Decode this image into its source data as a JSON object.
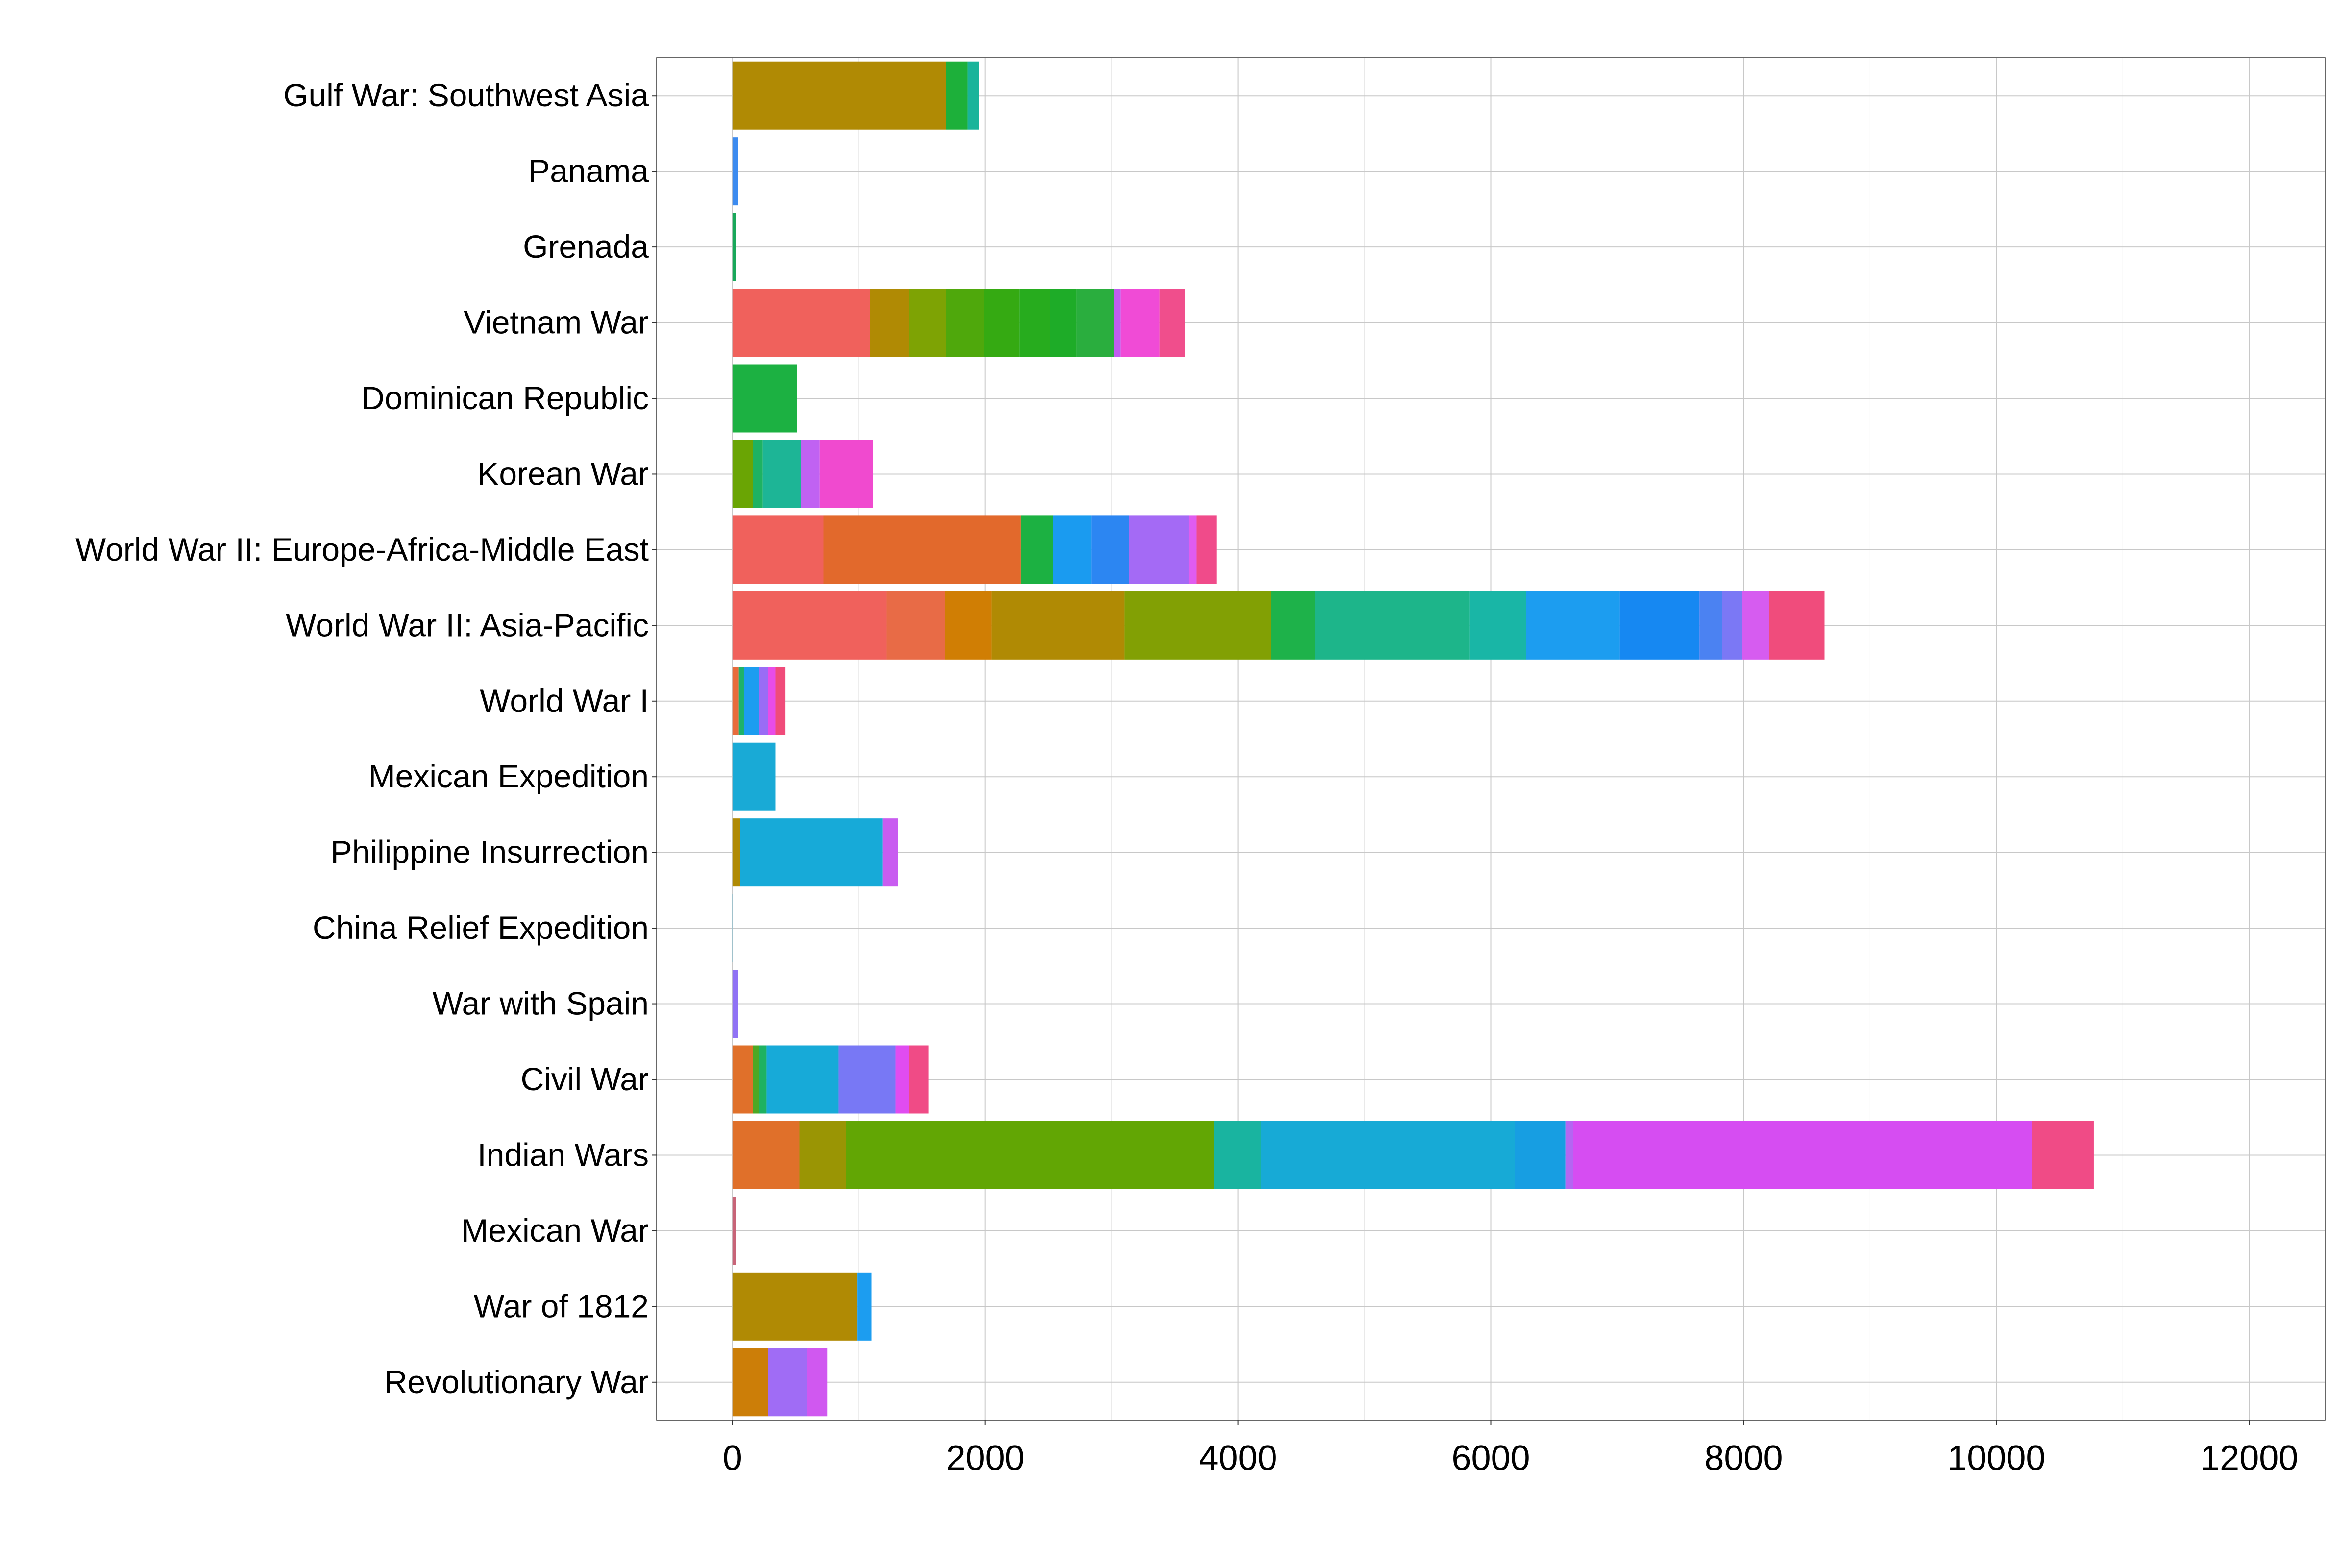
{
  "chart_data": {
    "type": "bar",
    "orientation": "horizontal",
    "stacked": true,
    "title": "",
    "xlabel": "",
    "ylabel": "",
    "xlim": [
      -600,
      12600
    ],
    "x_ticks": [
      0,
      2000,
      4000,
      6000,
      8000,
      10000,
      12000
    ],
    "grid": true,
    "legend": "none",
    "categories": [
      "Gulf War: Southwest Asia",
      "Panama",
      "Grenada",
      "Vietnam War",
      "Dominican Republic",
      "Korean War",
      "World War II: Europe-Africa-Middle East",
      "World War II: Asia-Pacific",
      "World War I",
      "Mexican Expedition",
      "Philippine Insurrection",
      "China Relief Expedition",
      "War with Spain",
      "Civil War",
      "Indian Wars",
      "Mexican War",
      "War of 1812",
      "Revolutionary War"
    ],
    "bars": [
      {
        "category": "Gulf War: Southwest Asia",
        "segments": [
          {
            "value": 1690,
            "color": "#B08A04"
          },
          {
            "value": 170,
            "color": "#1DB03A"
          },
          {
            "value": 90,
            "color": "#19B49A"
          }
        ]
      },
      {
        "category": "Panama",
        "segments": [
          {
            "value": 45,
            "color": "#3C8BF0"
          }
        ]
      },
      {
        "category": "Grenada",
        "segments": [
          {
            "value": 30,
            "color": "#19A85A"
          }
        ]
      },
      {
        "category": "Vietnam War",
        "segments": [
          {
            "value": 1090,
            "color": "#F0615C"
          },
          {
            "value": 310,
            "color": "#B08A04"
          },
          {
            "value": 290,
            "color": "#7EA304"
          },
          {
            "value": 300,
            "color": "#4FA80C"
          },
          {
            "value": 280,
            "color": "#35AA12"
          },
          {
            "value": 240,
            "color": "#27AC1E"
          },
          {
            "value": 210,
            "color": "#1EAC28"
          },
          {
            "value": 300,
            "color": "#2AAE3E"
          },
          {
            "value": 50,
            "color": "#C05CF0"
          },
          {
            "value": 310,
            "color": "#F04BD6"
          },
          {
            "value": 200,
            "color": "#F04E8C"
          }
        ]
      },
      {
        "category": "Dominican Republic",
        "segments": [
          {
            "value": 510,
            "color": "#1CB142"
          }
        ]
      },
      {
        "category": "Korean War",
        "segments": [
          {
            "value": 160,
            "color": "#6AA504"
          },
          {
            "value": 80,
            "color": "#1EB262"
          },
          {
            "value": 300,
            "color": "#1DB596"
          },
          {
            "value": 150,
            "color": "#C062F2"
          },
          {
            "value": 420,
            "color": "#F04ACF"
          }
        ]
      },
      {
        "category": "World War II: Europe-Africa-Middle East",
        "segments": [
          {
            "value": 720,
            "color": "#F0615C"
          },
          {
            "value": 1560,
            "color": "#E2692C"
          },
          {
            "value": 260,
            "color": "#1CB142"
          },
          {
            "value": 300,
            "color": "#1A9BF0"
          },
          {
            "value": 300,
            "color": "#2C86F2"
          },
          {
            "value": 470,
            "color": "#A46AF5"
          },
          {
            "value": 60,
            "color": "#E05CF0"
          },
          {
            "value": 160,
            "color": "#F04B8A"
          }
        ]
      },
      {
        "category": "World War II: Asia-Pacific",
        "segments": [
          {
            "value": 1220,
            "color": "#F0615C"
          },
          {
            "value": 460,
            "color": "#E86B46"
          },
          {
            "value": 370,
            "color": "#D07E04"
          },
          {
            "value": 1050,
            "color": "#B08A04"
          },
          {
            "value": 1160,
            "color": "#82A004"
          },
          {
            "value": 350,
            "color": "#1EB24A"
          },
          {
            "value": 1220,
            "color": "#1DB58A"
          },
          {
            "value": 450,
            "color": "#19B6A6"
          },
          {
            "value": 740,
            "color": "#1C9DF0"
          },
          {
            "value": 630,
            "color": "#1688F2"
          },
          {
            "value": 180,
            "color": "#4B82F2"
          },
          {
            "value": 160,
            "color": "#7B78F5"
          },
          {
            "value": 210,
            "color": "#D65CF0"
          },
          {
            "value": 440,
            "color": "#F04C7C"
          }
        ]
      },
      {
        "category": "World War I",
        "segments": [
          {
            "value": 50,
            "color": "#E86B3C"
          },
          {
            "value": 40,
            "color": "#1EB26A"
          },
          {
            "value": 120,
            "color": "#1C9DF0"
          },
          {
            "value": 70,
            "color": "#9A6CF5"
          },
          {
            "value": 60,
            "color": "#E84CE8"
          },
          {
            "value": 80,
            "color": "#F04B7A"
          }
        ]
      },
      {
        "category": "Mexican Expedition",
        "segments": [
          {
            "value": 340,
            "color": "#19AAD6"
          }
        ]
      },
      {
        "category": "Philippine Insurrection",
        "segments": [
          {
            "value": 60,
            "color": "#B08A04"
          },
          {
            "value": 1130,
            "color": "#17AAD8"
          },
          {
            "value": 120,
            "color": "#C85CF0"
          }
        ]
      },
      {
        "category": "China Relief Expedition",
        "segments": [
          {
            "value": 3,
            "color": "#19AAD6"
          }
        ]
      },
      {
        "category": "War with Spain",
        "segments": [
          {
            "value": 45,
            "color": "#9072F5"
          }
        ]
      },
      {
        "category": "Civil War",
        "segments": [
          {
            "value": 160,
            "color": "#E0702A"
          },
          {
            "value": 50,
            "color": "#4CA824"
          },
          {
            "value": 60,
            "color": "#1EB262"
          },
          {
            "value": 570,
            "color": "#17AAD8"
          },
          {
            "value": 450,
            "color": "#7878F5"
          },
          {
            "value": 110,
            "color": "#E04CF0"
          },
          {
            "value": 150,
            "color": "#F04B86"
          }
        ]
      },
      {
        "category": "Indian Wars",
        "segments": [
          {
            "value": 530,
            "color": "#E0702A"
          },
          {
            "value": 370,
            "color": "#9A9504"
          },
          {
            "value": 2910,
            "color": "#62A604"
          },
          {
            "value": 370,
            "color": "#19B4A0"
          },
          {
            "value": 2010,
            "color": "#17AAD6"
          },
          {
            "value": 400,
            "color": "#179EE2"
          },
          {
            "value": 60,
            "color": "#B466F2"
          },
          {
            "value": 3630,
            "color": "#D64DF2"
          },
          {
            "value": 490,
            "color": "#F04B86"
          }
        ]
      },
      {
        "category": "Mexican War",
        "segments": [
          {
            "value": 28,
            "color": "#C86478"
          }
        ]
      },
      {
        "category": "War of 1812",
        "segments": [
          {
            "value": 990,
            "color": "#B08A04"
          },
          {
            "value": 110,
            "color": "#1C9DF0"
          }
        ]
      },
      {
        "category": "Revolutionary War",
        "segments": [
          {
            "value": 280,
            "color": "#CC7E08"
          },
          {
            "value": 310,
            "color": "#A06CF5"
          },
          {
            "value": 160,
            "color": "#D058F0"
          }
        ]
      }
    ]
  }
}
